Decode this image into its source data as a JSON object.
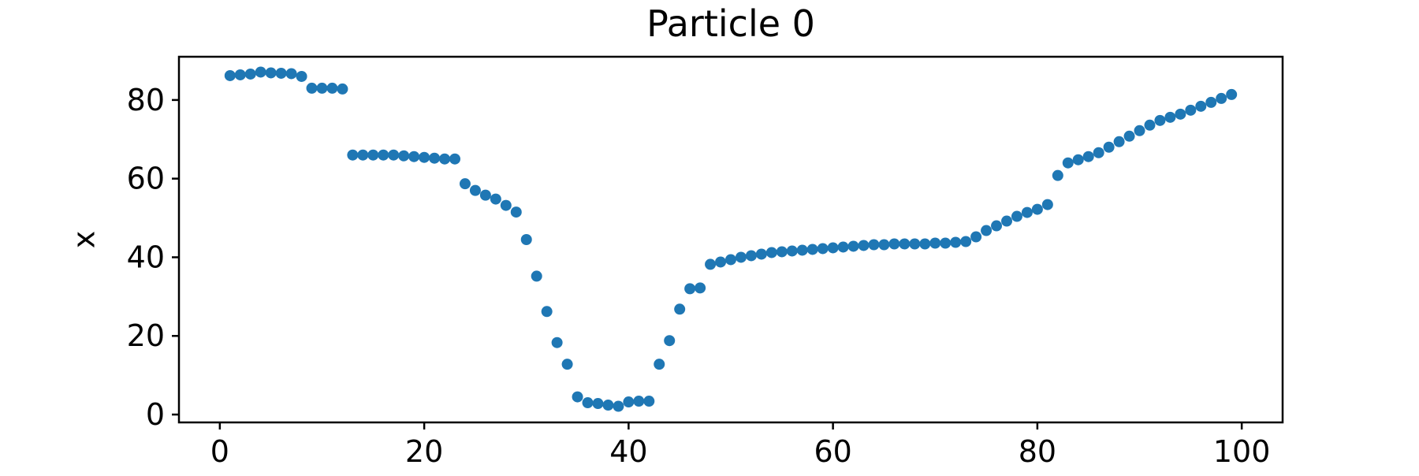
{
  "chart_data": {
    "type": "scatter",
    "title": "Particle 0",
    "xlabel": "",
    "ylabel": "x",
    "xlim": [
      -4,
      104
    ],
    "ylim": [
      -2,
      91
    ],
    "xticks": [
      0,
      20,
      40,
      60,
      80,
      100
    ],
    "yticks": [
      0,
      20,
      40,
      60,
      80
    ],
    "grid": false,
    "marker_color": "#1f77b4",
    "series": [
      {
        "x": [
          1,
          2,
          3,
          4,
          5,
          6,
          7,
          8,
          9,
          10,
          11,
          12,
          13,
          14,
          15,
          16,
          17,
          18,
          19,
          20,
          21,
          22,
          23,
          24,
          25,
          26,
          27,
          28,
          29,
          30,
          31,
          32,
          33,
          34,
          35,
          36,
          37,
          38,
          39,
          40,
          41,
          42,
          43,
          44,
          45,
          46,
          47,
          48,
          49,
          50,
          51,
          52,
          53,
          54,
          55,
          56,
          57,
          58,
          59,
          60,
          61,
          62,
          63,
          64,
          65,
          66,
          67,
          68,
          69,
          70,
          71,
          72,
          73,
          74,
          75,
          76,
          77,
          78,
          79,
          80,
          81,
          82,
          83,
          84,
          85,
          86,
          87,
          88,
          89,
          90,
          91,
          92,
          93,
          94,
          95,
          96,
          97,
          98,
          99
        ],
        "y": [
          86.2,
          86.4,
          86.6,
          87.1,
          86.9,
          86.8,
          86.7,
          86.0,
          83.0,
          83.0,
          83.0,
          82.8,
          66.0,
          66.0,
          66.0,
          66.0,
          66.0,
          65.8,
          65.6,
          65.4,
          65.2,
          65.0,
          65.0,
          58.7,
          57.0,
          55.8,
          54.8,
          53.2,
          51.5,
          44.5,
          35.2,
          26.2,
          18.3,
          12.8,
          4.5,
          3.0,
          2.8,
          2.4,
          2.1,
          3.2,
          3.4,
          3.4,
          12.8,
          18.8,
          26.8,
          32.0,
          32.2,
          38.2,
          38.8,
          39.4,
          40.0,
          40.4,
          40.8,
          41.2,
          41.4,
          41.6,
          41.8,
          42.0,
          42.2,
          42.4,
          42.6,
          42.8,
          43.0,
          43.2,
          43.2,
          43.4,
          43.4,
          43.4,
          43.4,
          43.6,
          43.6,
          43.8,
          44.0,
          45.2,
          46.8,
          48.0,
          49.2,
          50.4,
          51.4,
          52.2,
          53.4,
          60.8,
          64.0,
          64.8,
          65.6,
          66.6,
          68.0,
          69.4,
          70.8,
          72.2,
          73.6,
          74.8,
          75.6,
          76.4,
          77.4,
          78.4,
          79.4,
          80.4,
          81.4
        ]
      }
    ]
  }
}
